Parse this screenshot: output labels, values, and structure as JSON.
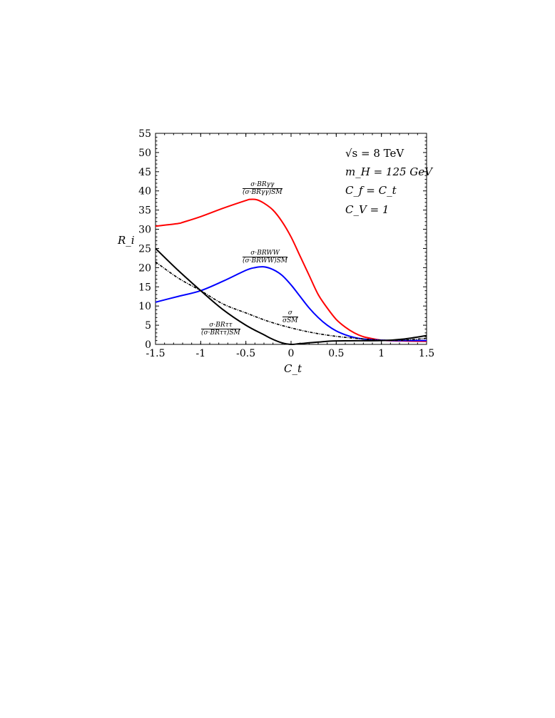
{
  "chart_data": {
    "type": "line",
    "xlabel": "C_t",
    "ylabel": "R_i",
    "xlim": [
      -1.5,
      1.5
    ],
    "ylim": [
      0,
      55
    ],
    "xticks": [
      "-1.5",
      "-1",
      "-0.5",
      "0",
      "0.5",
      "1",
      "1.5"
    ],
    "yticks": [
      "0",
      "5",
      "10",
      "15",
      "20",
      "25",
      "30",
      "35",
      "40",
      "45",
      "50",
      "55"
    ],
    "annotations": [
      "√s = 8 TeV",
      "m_H = 125 GeV",
      "C_f = C_t",
      "C_V = 1"
    ],
    "series": [
      {
        "name": "σ·BR_γγ / (σ·BR_γγ)^SM",
        "color": "#ff0000",
        "style": "solid",
        "x": [
          -1.5,
          -1.25,
          -1.2,
          -1,
          -0.75,
          -0.5,
          -0.45,
          -0.38,
          -0.3,
          -0.2,
          -0.1,
          0,
          0.1,
          0.2,
          0.3,
          0.4,
          0.5,
          0.6,
          0.7,
          0.8,
          0.9,
          1,
          1.2,
          1.5
        ],
        "y": [
          30.8,
          31.5,
          31.8,
          33.3,
          35.5,
          37.5,
          37.8,
          37.7,
          36.8,
          35,
          32,
          28,
          23,
          18,
          13,
          9.5,
          6.5,
          4.5,
          3,
          2,
          1.5,
          1.1,
          0.9,
          0.8
        ]
      },
      {
        "name": "σ·BR_WW / (σ·BR_WW)^SM",
        "color": "#0000ff",
        "style": "solid",
        "x": [
          -1.5,
          -1.25,
          -1,
          -0.75,
          -0.5,
          -0.4,
          -0.3,
          -0.2,
          -0.1,
          0,
          0.1,
          0.2,
          0.3,
          0.4,
          0.5,
          0.6,
          0.7,
          0.8,
          1,
          1.2,
          1.5
        ],
        "y": [
          11,
          12.5,
          14,
          16.5,
          19.3,
          20,
          20.2,
          19.5,
          18,
          15.5,
          12.5,
          9.5,
          7,
          5,
          3.5,
          2.5,
          1.8,
          1.4,
          1.1,
          1,
          1
        ]
      },
      {
        "name": "σ·BR_ττ / (σ·BR_ττ)^SM",
        "color": "#000000",
        "style": "solid",
        "x": [
          -1.5,
          -1.25,
          -1,
          -0.75,
          -0.5,
          -0.3,
          -0.2,
          -0.1,
          0,
          0.1,
          0.3,
          0.5,
          1,
          1.25,
          1.5
        ],
        "y": [
          25,
          19.3,
          14,
          9,
          5,
          2.5,
          1.3,
          0.4,
          0,
          0.2,
          0.6,
          0.9,
          1,
          1.4,
          2.3
        ]
      },
      {
        "name": "σ / σ_SM",
        "color": "#000000",
        "style": "dashdot",
        "x": [
          -1.5,
          -1.25,
          -1,
          -0.75,
          -0.5,
          -0.25,
          0,
          0.25,
          0.5,
          0.75,
          1,
          1.25,
          1.5
        ],
        "y": [
          21.5,
          17.3,
          14,
          10.5,
          8.2,
          6,
          4.3,
          3,
          2.1,
          1.5,
          1.1,
          1.1,
          1.6
        ]
      }
    ]
  },
  "labels": {
    "gg_num": "σ·BRγγ",
    "gg_den": "(σ·BRγγ)SM",
    "ww_num": "σ·BRWW",
    "ww_den": "(σ·BRWW)SM",
    "tt_num": "σ·BRττ",
    "tt_den": "(σ·BRττ)SM",
    "sig_num": "σ",
    "sig_den": "σSM"
  }
}
